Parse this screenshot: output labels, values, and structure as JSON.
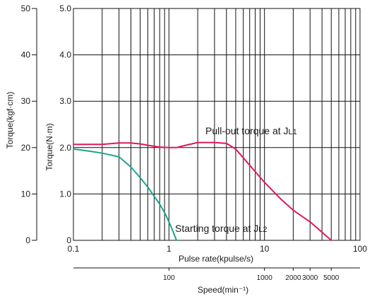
{
  "chart_data": {
    "type": "line",
    "title": "",
    "xlabel": "Pulse rate(kpulse/s)",
    "ylabel": "Torque(N·m)",
    "ylabel_secondary": "Torque(kgf·cm)",
    "x2label": "Speed(min⁻¹)",
    "xscale": "log",
    "xlim": [
      0.1,
      100
    ],
    "ylim": [
      0,
      5.0
    ],
    "grid": true,
    "x_ticks": [
      {
        "value": 0.1,
        "label": "0.1"
      },
      {
        "value": 1,
        "label": "1"
      },
      {
        "value": 10,
        "label": "10"
      },
      {
        "value": 100,
        "label": "100"
      }
    ],
    "y_ticks": [
      {
        "value": 0,
        "label": "0"
      },
      {
        "value": 1.0,
        "label": "1.0"
      },
      {
        "value": 2.0,
        "label": "2.0"
      },
      {
        "value": 3.0,
        "label": "3.0"
      },
      {
        "value": 4.0,
        "label": "4.0"
      },
      {
        "value": 5.0,
        "label": "5.0"
      }
    ],
    "y2_ticks": [
      {
        "value": 0,
        "label": "0"
      },
      {
        "value": 10,
        "label": "10"
      },
      {
        "value": 20,
        "label": "20"
      },
      {
        "value": 30,
        "label": "30"
      },
      {
        "value": 40,
        "label": "40"
      },
      {
        "value": 50,
        "label": "50"
      }
    ],
    "speed_ticks": [
      {
        "speed": 100,
        "label": "100"
      },
      {
        "speed": 1000,
        "label": "1000"
      },
      {
        "speed": 2000,
        "label": "2000"
      },
      {
        "speed": 3000,
        "label": "3000"
      },
      {
        "speed": 5000,
        "label": "5000"
      }
    ],
    "series": [
      {
        "name": "Pull-out torque at JL1",
        "label_parts": [
          "Pull-out torque at J",
          "L1"
        ],
        "color": "#e0185a",
        "x": [
          0.1,
          0.2,
          0.3,
          0.4,
          0.5,
          0.6,
          0.8,
          1.0,
          1.2,
          1.5,
          2.0,
          3.0,
          4.0,
          5.0,
          6.0,
          8.0,
          10.0,
          15.0,
          20.0,
          30.0,
          50.0
        ],
        "y": [
          2.07,
          2.07,
          2.1,
          2.1,
          2.08,
          2.05,
          2.01,
          2.0,
          2.0,
          2.05,
          2.11,
          2.11,
          2.09,
          1.97,
          1.78,
          1.48,
          1.25,
          0.88,
          0.65,
          0.4,
          0.0
        ]
      },
      {
        "name": "Starting torque at JL2",
        "label_parts": [
          "Starting torque at J",
          "L2"
        ],
        "color": "#1aa58e",
        "x": [
          0.1,
          0.15,
          0.2,
          0.3,
          0.4,
          0.5,
          0.6,
          0.7,
          0.8,
          0.9,
          1.0,
          1.1,
          1.2
        ],
        "y": [
          1.97,
          1.92,
          1.88,
          1.8,
          1.58,
          1.35,
          1.15,
          0.95,
          0.78,
          0.6,
          0.4,
          0.2,
          0.0
        ]
      }
    ]
  }
}
